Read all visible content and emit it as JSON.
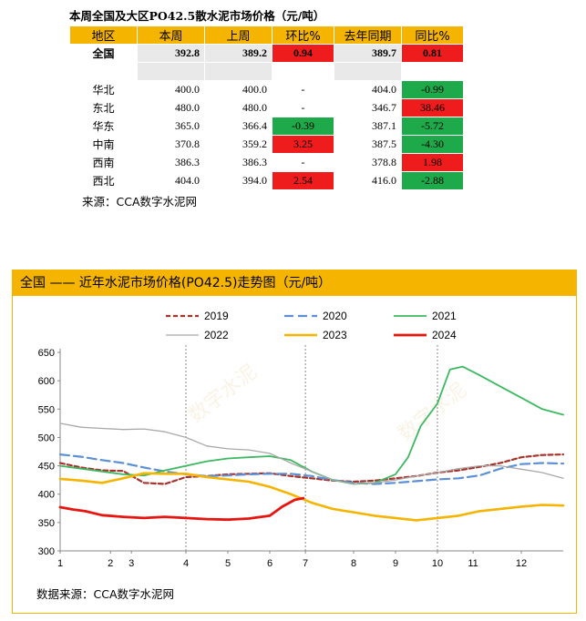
{
  "table": {
    "title": "本周全国及大区PO42.5散水泥市场价格（元/吨）",
    "headers": [
      "地区",
      "本周",
      "上周",
      "环比%",
      "去年同期",
      "同比%"
    ],
    "rows": [
      {
        "region": "全国",
        "this_week": "392.8",
        "last_week": "389.2",
        "wow": "0.94",
        "last_year": "389.7",
        "yoy": "0.81",
        "wow_dir": "up",
        "yoy_dir": "up",
        "bold": true
      },
      {
        "region": "华北",
        "this_week": "400.0",
        "last_week": "400.0",
        "wow": "-",
        "last_year": "404.0",
        "yoy": "-0.99",
        "wow_dir": "none",
        "yoy_dir": "down"
      },
      {
        "region": "东北",
        "this_week": "480.0",
        "last_week": "480.0",
        "wow": "-",
        "last_year": "346.7",
        "yoy": "38.46",
        "wow_dir": "none",
        "yoy_dir": "up"
      },
      {
        "region": "华东",
        "this_week": "365.0",
        "last_week": "366.4",
        "wow": "-0.39",
        "last_year": "387.1",
        "yoy": "-5.72",
        "wow_dir": "down",
        "yoy_dir": "down"
      },
      {
        "region": "中南",
        "this_week": "370.8",
        "last_week": "359.2",
        "wow": "3.25",
        "last_year": "387.5",
        "yoy": "-4.30",
        "wow_dir": "up",
        "yoy_dir": "down"
      },
      {
        "region": "西南",
        "this_week": "386.3",
        "last_week": "386.3",
        "wow": "-",
        "last_year": "378.8",
        "yoy": "1.98",
        "wow_dir": "none",
        "yoy_dir": "up"
      },
      {
        "region": "西北",
        "this_week": "404.0",
        "last_week": "394.0",
        "wow": "2.54",
        "last_year": "416.0",
        "yoy": "-2.88",
        "wow_dir": "up",
        "yoy_dir": "down"
      }
    ],
    "source": "来源：CCA数字水泥网"
  },
  "chart": {
    "header": "全国 —— 近年水泥市场价格(PO42.5)走势图（元/吨）",
    "source": "数据来源：CCA数字水泥网",
    "watermark": "数字水泥"
  },
  "chart_data": {
    "type": "line",
    "ylim": [
      300,
      650
    ],
    "yticks": [
      300,
      350,
      400,
      450,
      500,
      550,
      600,
      650
    ],
    "xlim": [
      1,
      13
    ],
    "xticks": [
      "1",
      "2",
      "3",
      "4",
      "5",
      "6",
      "7",
      "8",
      "9",
      "10",
      "11",
      "12"
    ],
    "grid": false,
    "legend": "top",
    "series": [
      {
        "name": "2019",
        "color": "#a8322a",
        "dash": "5,3",
        "width": 2.2,
        "x": [
          1,
          1.5,
          2,
          2.5,
          3,
          3.5,
          4,
          4.5,
          5,
          5.5,
          6,
          6.5,
          7,
          7.5,
          8,
          8.5,
          9,
          9.5,
          10,
          10.5,
          11,
          11.5,
          12,
          12.5,
          13
        ],
        "y": [
          455,
          447,
          442,
          441,
          420,
          418,
          430,
          432,
          435,
          436,
          437,
          432,
          428,
          424,
          422,
          424,
          428,
          432,
          438,
          442,
          448,
          455,
          465,
          469,
          470
        ]
      },
      {
        "name": "2020",
        "color": "#5b8fd6",
        "dash": "10,5",
        "width": 2.2,
        "x": [
          1,
          1.5,
          2,
          2.5,
          3,
          3.5,
          4,
          4.5,
          5,
          5.5,
          6,
          6.5,
          7,
          7.5,
          8,
          8.5,
          9,
          9.5,
          10,
          10.5,
          11,
          11.5,
          12,
          12.5,
          13
        ],
        "y": [
          470,
          466,
          460,
          455,
          447,
          440,
          435,
          432,
          433,
          435,
          436,
          436,
          432,
          425,
          420,
          418,
          420,
          423,
          426,
          428,
          433,
          445,
          453,
          455,
          454
        ]
      },
      {
        "name": "2021",
        "color": "#3cb960",
        "dash": "",
        "width": 1.8,
        "x": [
          1,
          1.5,
          2,
          2.5,
          3,
          3.5,
          4,
          4.5,
          5,
          5.5,
          6,
          6.5,
          7,
          7.5,
          8,
          8.5,
          9,
          9.3,
          9.6,
          10,
          10.3,
          10.6,
          11,
          11.5,
          12,
          12.5,
          13
        ],
        "y": [
          450,
          445,
          440,
          435,
          433,
          442,
          450,
          458,
          463,
          465,
          467,
          460,
          440,
          425,
          418,
          420,
          435,
          465,
          520,
          560,
          620,
          625,
          610,
          590,
          570,
          550,
          540
        ]
      },
      {
        "name": "2022",
        "color": "#a9a9a9",
        "dash": "",
        "width": 1.3,
        "x": [
          1,
          1.5,
          2,
          2.5,
          3,
          3.5,
          4,
          4.5,
          5,
          5.5,
          6,
          6.5,
          7,
          7.5,
          8,
          8.5,
          9,
          9.5,
          10,
          10.5,
          11,
          11.5,
          12,
          12.5,
          13
        ],
        "y": [
          525,
          518,
          516,
          514,
          515,
          510,
          500,
          485,
          480,
          478,
          472,
          455,
          440,
          425,
          418,
          420,
          425,
          432,
          438,
          445,
          450,
          450,
          444,
          438,
          428
        ]
      },
      {
        "name": "2023",
        "color": "#f5b400",
        "dash": "",
        "width": 2.6,
        "x": [
          1,
          1.5,
          2,
          2.5,
          3,
          3.5,
          4,
          4.5,
          5,
          5.5,
          6,
          6.5,
          7,
          7.5,
          8,
          8.5,
          9,
          9.5,
          10,
          10.5,
          11,
          11.5,
          12,
          12.5,
          13
        ],
        "y": [
          427,
          424,
          420,
          428,
          437,
          436,
          436,
          430,
          426,
          422,
          413,
          400,
          385,
          374,
          368,
          362,
          358,
          354,
          358,
          362,
          370,
          374,
          378,
          381,
          380
        ]
      },
      {
        "name": "2024",
        "color": "#e8140f",
        "dash": "",
        "width": 2.8,
        "x": [
          1,
          1.3,
          1.6,
          2,
          2.5,
          3,
          3.5,
          4,
          4.5,
          5,
          5.5,
          6,
          6.3,
          6.6,
          6.8
        ],
        "y": [
          377,
          373,
          370,
          363,
          360,
          358,
          360,
          358,
          356,
          355,
          357,
          362,
          378,
          390,
          393
        ]
      }
    ]
  }
}
